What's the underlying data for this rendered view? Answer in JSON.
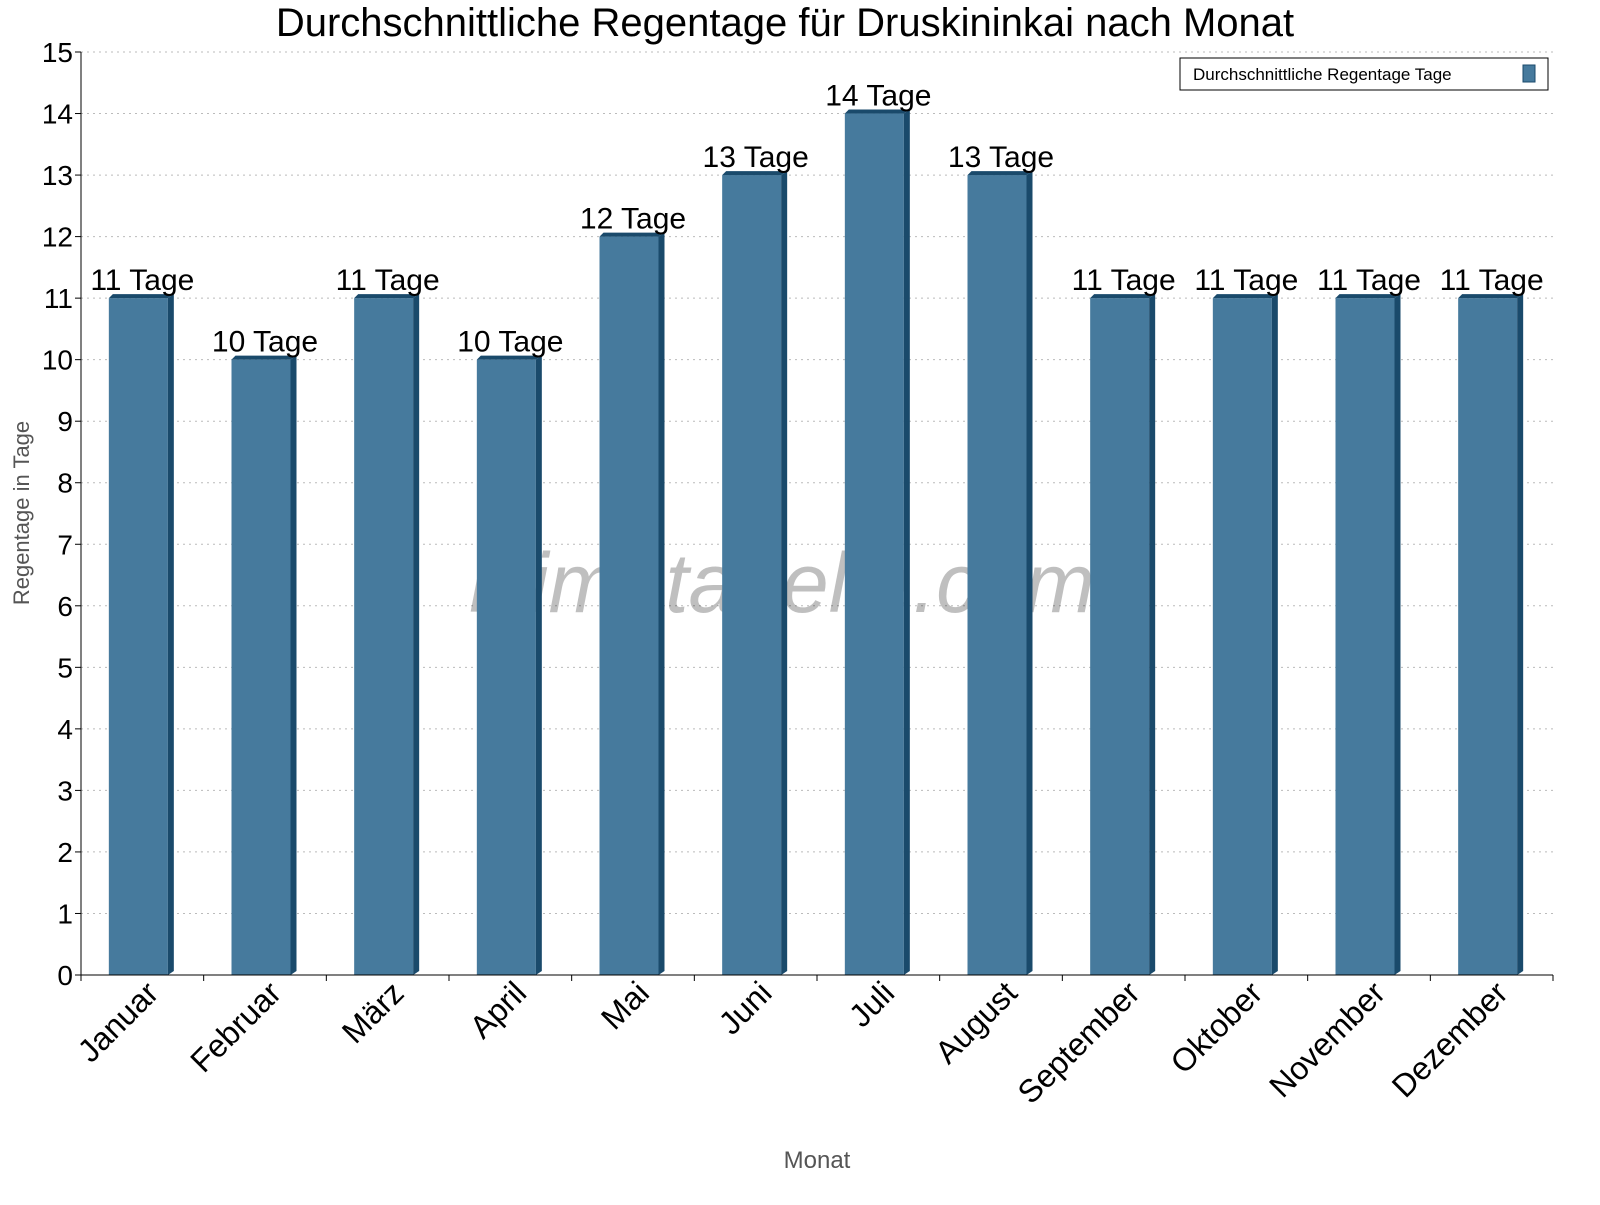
{
  "chart_data": {
    "type": "bar",
    "title": "Durchschnittliche Regentage für Druskininkai nach Monat",
    "xlabel": "Monat",
    "ylabel": "Regentage in Tage",
    "ylim": [
      0,
      15
    ],
    "yticks": [
      0,
      1,
      2,
      3,
      4,
      5,
      6,
      7,
      8,
      9,
      10,
      11,
      12,
      13,
      14,
      15
    ],
    "grid": true,
    "legend_position": "top-right",
    "categories": [
      "Januar",
      "Februar",
      "März",
      "April",
      "Mai",
      "Juni",
      "Juli",
      "August",
      "September",
      "Oktober",
      "November",
      "Dezember"
    ],
    "series": [
      {
        "name": "Durchschnittliche Regentage Tage",
        "values": [
          11,
          10,
          11,
          10,
          12,
          13,
          14,
          13,
          11,
          11,
          11,
          11
        ],
        "color": "#467a9d",
        "edge_color": "#1a4a6b"
      }
    ],
    "data_labels": [
      "11 Tage",
      "10 Tage",
      "11 Tage",
      "10 Tage",
      "12 Tage",
      "13 Tage",
      "14 Tage",
      "13 Tage",
      "11 Tage",
      "11 Tage",
      "11 Tage",
      "11 Tage"
    ],
    "watermark": "klimatabelle.com"
  }
}
